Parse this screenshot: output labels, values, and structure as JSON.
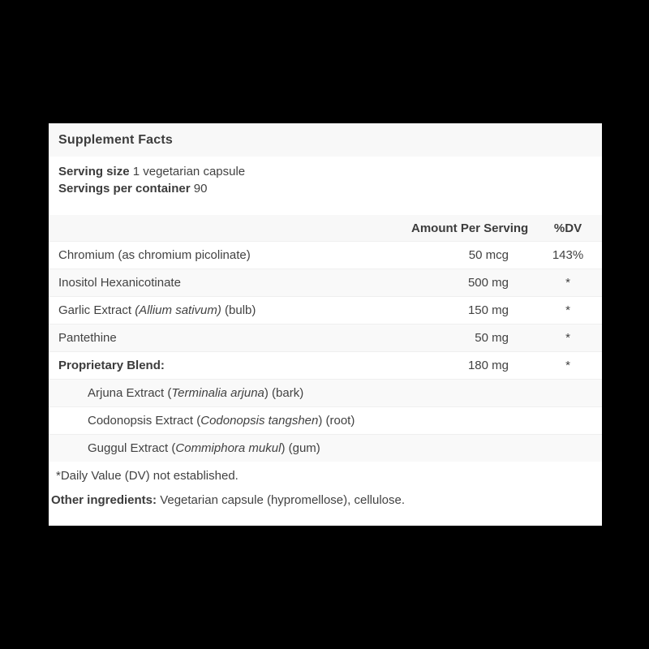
{
  "panel": {
    "title": "Supplement Facts",
    "serving": {
      "size_label": "Serving size",
      "size_value": "1 vegetarian capsule",
      "per_container_label": "Servings per container",
      "per_container_value": "90"
    },
    "columns": {
      "amount": "Amount Per Serving",
      "dv": "%DV"
    },
    "rows": [
      {
        "pre": "Chromium (as chromium picolinate)",
        "italic": "",
        "post": "",
        "amount": "50 mcg",
        "dv": "143%"
      },
      {
        "pre": "Inositol Hexanicotinate",
        "italic": "",
        "post": "",
        "amount": "500 mg",
        "dv": "*"
      },
      {
        "pre": "Garlic Extract ",
        "italic": "(Allium sativum)",
        "post": " (bulb)",
        "amount": "150 mg",
        "dv": "*"
      },
      {
        "pre": "Pantethine",
        "italic": "",
        "post": "",
        "amount": "50 mg",
        "dv": "*"
      },
      {
        "pre": "Proprietary Blend:",
        "italic": "",
        "post": "",
        "amount": "180 mg",
        "dv": "*"
      },
      {
        "pre": "Arjuna Extract (",
        "italic": "Terminalia arjuna",
        "post": ") (bark)",
        "amount": "",
        "dv": ""
      },
      {
        "pre": "Codonopsis Extract (",
        "italic": "Codonopsis tangshen",
        "post": ") (root)",
        "amount": "",
        "dv": ""
      },
      {
        "pre": "Guggul Extract (",
        "italic": "Commiphora mukul",
        "post": ") (gum)",
        "amount": "",
        "dv": ""
      }
    ],
    "footnote": "*Daily Value (DV) not established.",
    "other_ingredients_label": "Other ingredients:",
    "other_ingredients_value": "Vegetarian capsule (hypromellose), cellulose.",
    "colors": {
      "page_bg": "#000000",
      "panel_bg": "#ffffff",
      "band_bg": "#f8f8f8",
      "stripe_bg": "#f9f9f9",
      "divider": "#efefef",
      "text": "#424242"
    }
  }
}
